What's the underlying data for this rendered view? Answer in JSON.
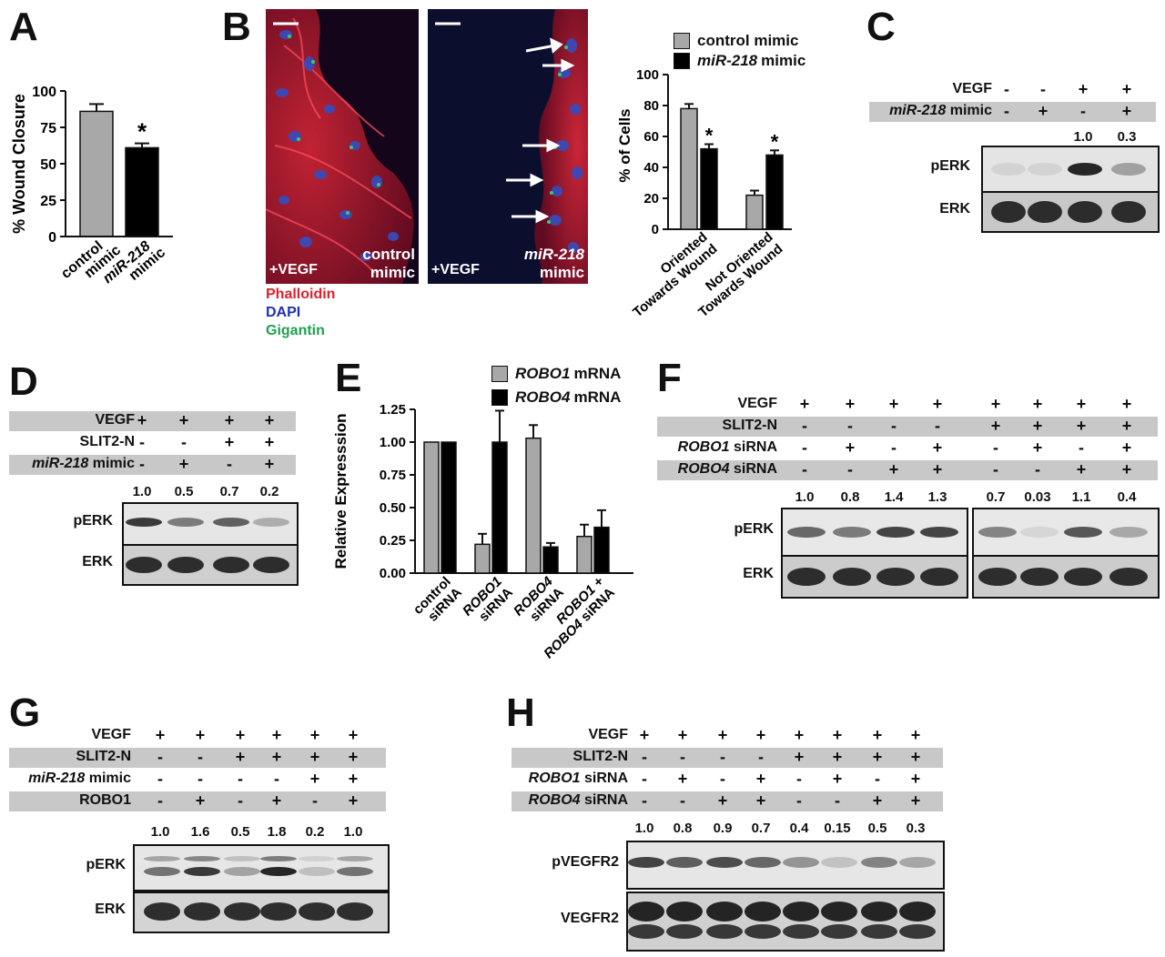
{
  "panel_letters": [
    "A",
    "B",
    "C",
    "D",
    "E",
    "F",
    "G",
    "H"
  ],
  "panelA": {
    "ylabel": "% Wound Closure",
    "categories": [
      "control mimic",
      "miR-218 mimic"
    ],
    "values": [
      86,
      61
    ],
    "errors": [
      5,
      3
    ],
    "ylim": [
      0,
      100
    ],
    "yticks": [
      0,
      25,
      50,
      75,
      100
    ],
    "significance": "*",
    "colors": [
      "#a8a8a8",
      "#000000"
    ]
  },
  "panelB": {
    "micro_left": {
      "treatment": "+VEGF",
      "label_line1": "control",
      "label_line2": "mimic"
    },
    "micro_right": {
      "treatment": "+VEGF",
      "label_line1": "miR-218",
      "label_line2": "mimic"
    },
    "stains": [
      {
        "name": "Phalloidin",
        "color": "#e0202c"
      },
      {
        "name": "DAPI",
        "color": "#2030b0"
      },
      {
        "name": "Gigantin",
        "color": "#20a050"
      }
    ],
    "legend": [
      "control mimic",
      "miR-218 mimic"
    ],
    "chart_data": {
      "type": "bar",
      "ylabel": "% of Cells",
      "categories": [
        "Oriented Towards Wound",
        "Not Oriented Towards Wound"
      ],
      "series": [
        {
          "name": "control mimic",
          "values": [
            78,
            22
          ],
          "errors": [
            3,
            3
          ],
          "color": "#a8a8a8"
        },
        {
          "name": "miR-218 mimic",
          "values": [
            52,
            48
          ],
          "errors": [
            3,
            3
          ],
          "color": "#000000"
        }
      ],
      "ylim": [
        0,
        100
      ],
      "yticks": [
        0,
        20,
        40,
        60,
        80,
        100
      ],
      "significance": [
        "*",
        "*"
      ]
    }
  },
  "panelC": {
    "rows": [
      {
        "label": "VEGF",
        "values": [
          "-",
          "-",
          "+",
          "+"
        ]
      },
      {
        "label": "miR-218 mimic",
        "values": [
          "-",
          "+",
          "-",
          "+"
        ]
      }
    ],
    "quant": [
      "",
      "",
      "1.0",
      "0.3"
    ],
    "blots": [
      "pERK",
      "ERK"
    ]
  },
  "panelD": {
    "rows": [
      {
        "label": "VEGF",
        "values": [
          "+",
          "+",
          "+",
          "+"
        ]
      },
      {
        "label": "SLIT2-N",
        "values": [
          "-",
          "-",
          "+",
          "+"
        ]
      },
      {
        "label": "miR-218 mimic",
        "values": [
          "-",
          "+",
          "-",
          "+"
        ]
      }
    ],
    "quant": [
      "1.0",
      "0.5",
      "0.7",
      "0.2"
    ],
    "blots": [
      "pERK",
      "ERK"
    ]
  },
  "panelE": {
    "legend": [
      "ROBO1 mRNA",
      "ROBO4 mRNA"
    ],
    "chart_data": {
      "type": "bar",
      "ylabel": "Relative Expresssion",
      "categories": [
        "control siRNA",
        "ROBO1 siRNA",
        "ROBO4 siRNA",
        "ROBO1 + ROBO4 siRNA"
      ],
      "series": [
        {
          "name": "ROBO1 mRNA",
          "values": [
            1.0,
            0.22,
            1.03,
            0.28
          ],
          "errors": [
            0,
            0.08,
            0.1,
            0.09
          ],
          "color": "#a8a8a8"
        },
        {
          "name": "ROBO4 mRNA",
          "values": [
            1.0,
            1.0,
            0.2,
            0.35
          ],
          "errors": [
            0,
            0.24,
            0.03,
            0.13
          ],
          "color": "#000000"
        }
      ],
      "ylim": [
        0,
        1.25
      ],
      "yticks": [
        "0.00",
        "0.25",
        "0.50",
        "0.75",
        "1.00",
        "1.25"
      ]
    }
  },
  "panelF": {
    "rows": [
      {
        "label": "VEGF",
        "values": [
          "+",
          "+",
          "+",
          "+",
          "+",
          "+",
          "+",
          "+"
        ]
      },
      {
        "label": "SLIT2-N",
        "values": [
          "-",
          "-",
          "-",
          "-",
          "+",
          "+",
          "+",
          "+"
        ]
      },
      {
        "label": "ROBO1 siRNA",
        "values": [
          "-",
          "+",
          "-",
          "+",
          "-",
          "+",
          "-",
          "+"
        ]
      },
      {
        "label": "ROBO4 siRNA",
        "values": [
          "-",
          "-",
          "+",
          "+",
          "-",
          "-",
          "+",
          "+"
        ]
      }
    ],
    "quant": [
      "1.0",
      "0.8",
      "1.4",
      "1.3",
      "0.7",
      "0.03",
      "1.1",
      "0.4"
    ],
    "blots": [
      "pERK",
      "ERK"
    ]
  },
  "panelG": {
    "rows": [
      {
        "label": "VEGF",
        "values": [
          "+",
          "+",
          "+",
          "+",
          "+",
          "+"
        ]
      },
      {
        "label": "SLIT2-N",
        "values": [
          "-",
          "-",
          "+",
          "+",
          "+",
          "+"
        ]
      },
      {
        "label": "miR-218 mimic",
        "values": [
          "-",
          "-",
          "-",
          "-",
          "+",
          "+"
        ]
      },
      {
        "label": "ROBO1",
        "values": [
          "-",
          "+",
          "-",
          "+",
          "-",
          "+"
        ]
      }
    ],
    "quant": [
      "1.0",
      "1.6",
      "0.5",
      "1.8",
      "0.2",
      "1.0"
    ],
    "blots": [
      "pERK",
      "ERK"
    ]
  },
  "panelH": {
    "rows": [
      {
        "label": "VEGF",
        "values": [
          "+",
          "+",
          "+",
          "+",
          "+",
          "+",
          "+",
          "+"
        ]
      },
      {
        "label": "SLIT2-N",
        "values": [
          "-",
          "-",
          "-",
          "-",
          "+",
          "+",
          "+",
          "+"
        ]
      },
      {
        "label": "ROBO1 siRNA",
        "values": [
          "-",
          "+",
          "-",
          "+",
          "-",
          "+",
          "-",
          "+"
        ]
      },
      {
        "label": "ROBO4 siRNA",
        "values": [
          "-",
          "-",
          "+",
          "+",
          "-",
          "-",
          "+",
          "+"
        ]
      }
    ],
    "quant": [
      "1.0",
      "0.8",
      "0.9",
      "0.7",
      "0.4",
      "0.15",
      "0.5",
      "0.3"
    ],
    "blots": [
      "pVEGFR2",
      "VEGFR2"
    ]
  }
}
